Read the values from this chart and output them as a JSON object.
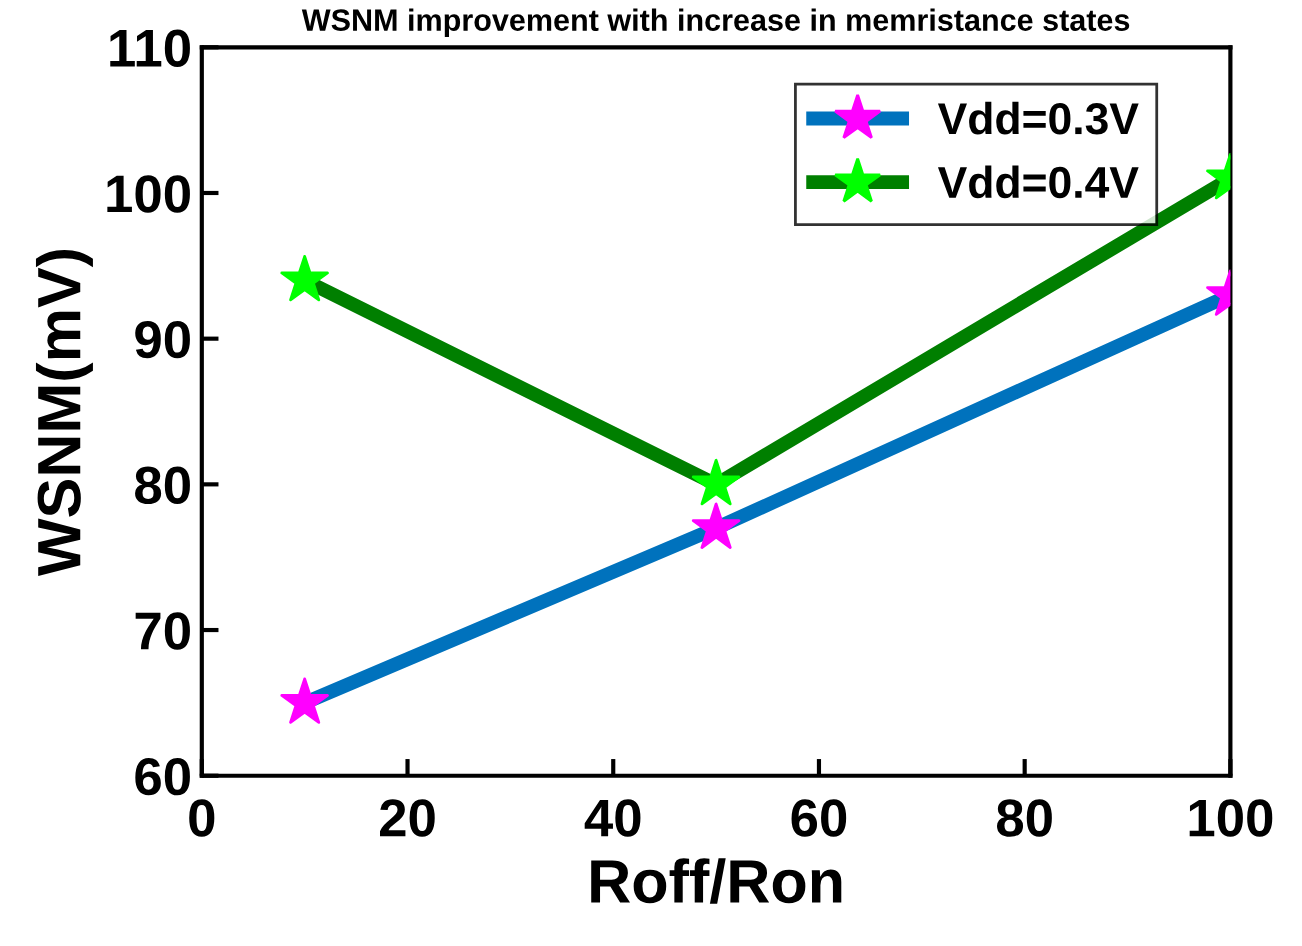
{
  "chart_data": {
    "type": "line",
    "title": "WSNM improvement with increase in memristance states",
    "xlabel": "Roff/Ron",
    "ylabel": "WSNM(mV)",
    "x": [
      10,
      50,
      100
    ],
    "series": [
      {
        "name": "Vdd=0.3V",
        "color": "#0072bd",
        "colors": [
          "#ff00ff",
          "#ff00ff",
          "#ff00ff"
        ],
        "values": [
          65,
          77,
          93
        ]
      },
      {
        "name": "Vdd=0.4V",
        "color": "#007f00",
        "colors": [
          "#00ff00",
          "#00ff00",
          "#00ff00"
        ],
        "values": [
          94,
          80,
          101
        ]
      }
    ],
    "xlim": [
      0,
      100
    ],
    "xticks": [
      0,
      20,
      40,
      60,
      80,
      100
    ],
    "ylim": [
      60,
      110
    ],
    "yticks": [
      60,
      70,
      80,
      90,
      100,
      110
    ],
    "marker": "star",
    "line_style": "solid",
    "legend": "top right",
    "grid": false
  }
}
